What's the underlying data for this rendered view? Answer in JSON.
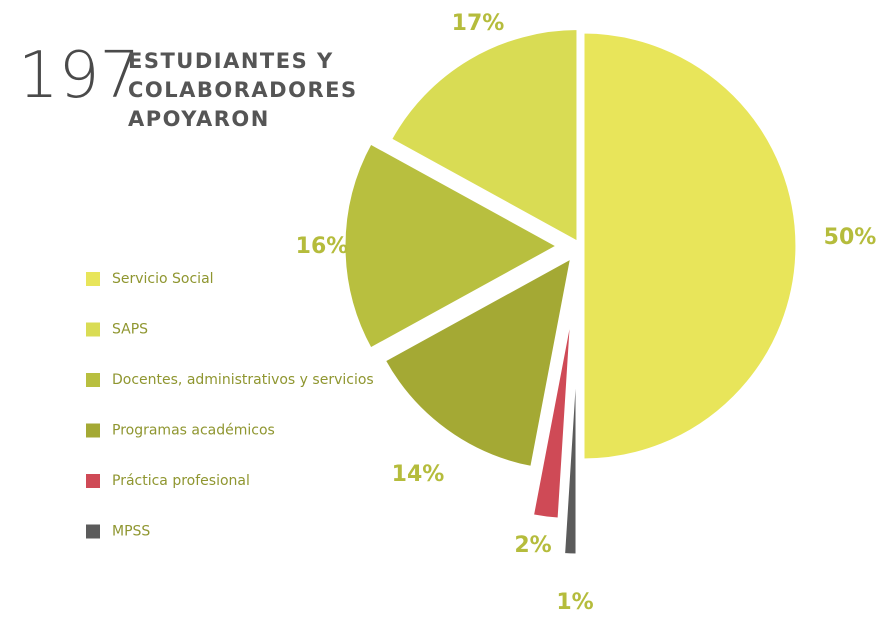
{
  "chart_data": {
    "type": "pie",
    "total": "197",
    "title": [
      "ESTUDIANTES Y",
      "COLABORADORES",
      "APOYARON"
    ],
    "categories": [
      "Servicio Social",
      "MPSS",
      "Práctica profesional",
      "Programas académicos",
      "Docentes, administrativos y servicios",
      "SAPS"
    ],
    "values": [
      50,
      1,
      2,
      14,
      16,
      17
    ],
    "value_labels": [
      "50%",
      "1%",
      "2%",
      "14%",
      "16%",
      "17%"
    ],
    "colors": [
      "#e8e55a",
      "#5b5b5b",
      "#cf4a56",
      "#a4a934",
      "#b8bf3f",
      "#d9dc54"
    ],
    "legend": {
      "position": "left",
      "order": [
        0,
        5,
        4,
        3,
        2,
        1
      ]
    }
  }
}
